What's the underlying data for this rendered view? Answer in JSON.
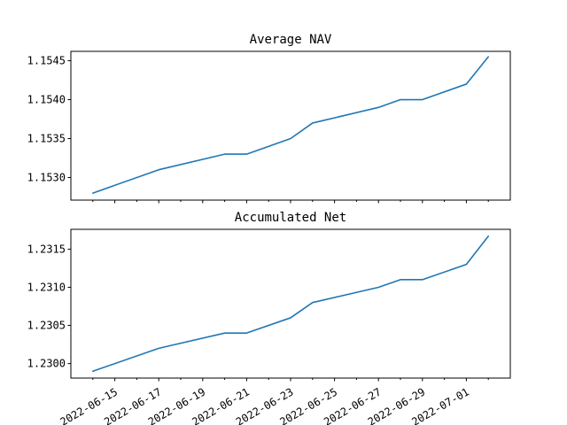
{
  "chart_data": [
    {
      "type": "line",
      "title": "Average NAV",
      "x": [
        "2022-06-14",
        "2022-06-17",
        "2022-06-20",
        "2022-06-21",
        "2022-06-23",
        "2022-06-24",
        "2022-06-27",
        "2022-06-28",
        "2022-06-29",
        "2022-07-01",
        "2022-07-02"
      ],
      "series": [
        {
          "values": [
            1.1528,
            1.1531,
            1.1533,
            1.1533,
            1.1535,
            1.1537,
            1.1539,
            1.154,
            1.154,
            1.1542,
            1.15455
          ]
        }
      ],
      "yticks": [
        1.153,
        1.1535,
        1.154,
        1.1545
      ],
      "ytick_labels": [
        "1.1530",
        "1.1535",
        "1.1540",
        "1.1545"
      ],
      "ylim": [
        1.15271,
        1.15462
      ],
      "xlim": [
        "2022-06-13",
        "2022-07-03"
      ],
      "show_xtick_labels": false,
      "grid": false
    },
    {
      "type": "line",
      "title": "Accumulated Net",
      "x": [
        "2022-06-14",
        "2022-06-17",
        "2022-06-20",
        "2022-06-21",
        "2022-06-23",
        "2022-06-24",
        "2022-06-27",
        "2022-06-28",
        "2022-06-29",
        "2022-07-01",
        "2022-07-02"
      ],
      "series": [
        {
          "values": [
            1.2299,
            1.2302,
            1.2304,
            1.2304,
            1.2306,
            1.2308,
            1.231,
            1.2311,
            1.2311,
            1.2313,
            1.23167
          ]
        }
      ],
      "yticks": [
        1.23,
        1.2305,
        1.231,
        1.2315
      ],
      "ytick_labels": [
        "1.2300",
        "1.2305",
        "1.2310",
        "1.2315"
      ],
      "ylim": [
        1.22981,
        1.23176
      ],
      "xlim": [
        "2022-06-13",
        "2022-07-03"
      ],
      "xticks_major": [
        "2022-06-15",
        "2022-06-17",
        "2022-06-19",
        "2022-06-21",
        "2022-06-23",
        "2022-06-25",
        "2022-06-27",
        "2022-06-29",
        "2022-07-01"
      ],
      "xtick_labels": [
        "2022-06-15",
        "2022-06-17",
        "2022-06-19",
        "2022-06-21",
        "2022-06-23",
        "2022-06-25",
        "2022-06-27",
        "2022-06-29",
        "2022-07-01"
      ],
      "xticks_minor": [
        "2022-06-14",
        "2022-06-16",
        "2022-06-18",
        "2022-06-20",
        "2022-06-22",
        "2022-06-24",
        "2022-06-26",
        "2022-06-28",
        "2022-06-30",
        "2022-07-02"
      ],
      "show_xtick_labels": true,
      "grid": false
    }
  ],
  "style": {
    "line_color": "#1f77b4",
    "axis_color": "#000000",
    "background": "#ffffff"
  }
}
